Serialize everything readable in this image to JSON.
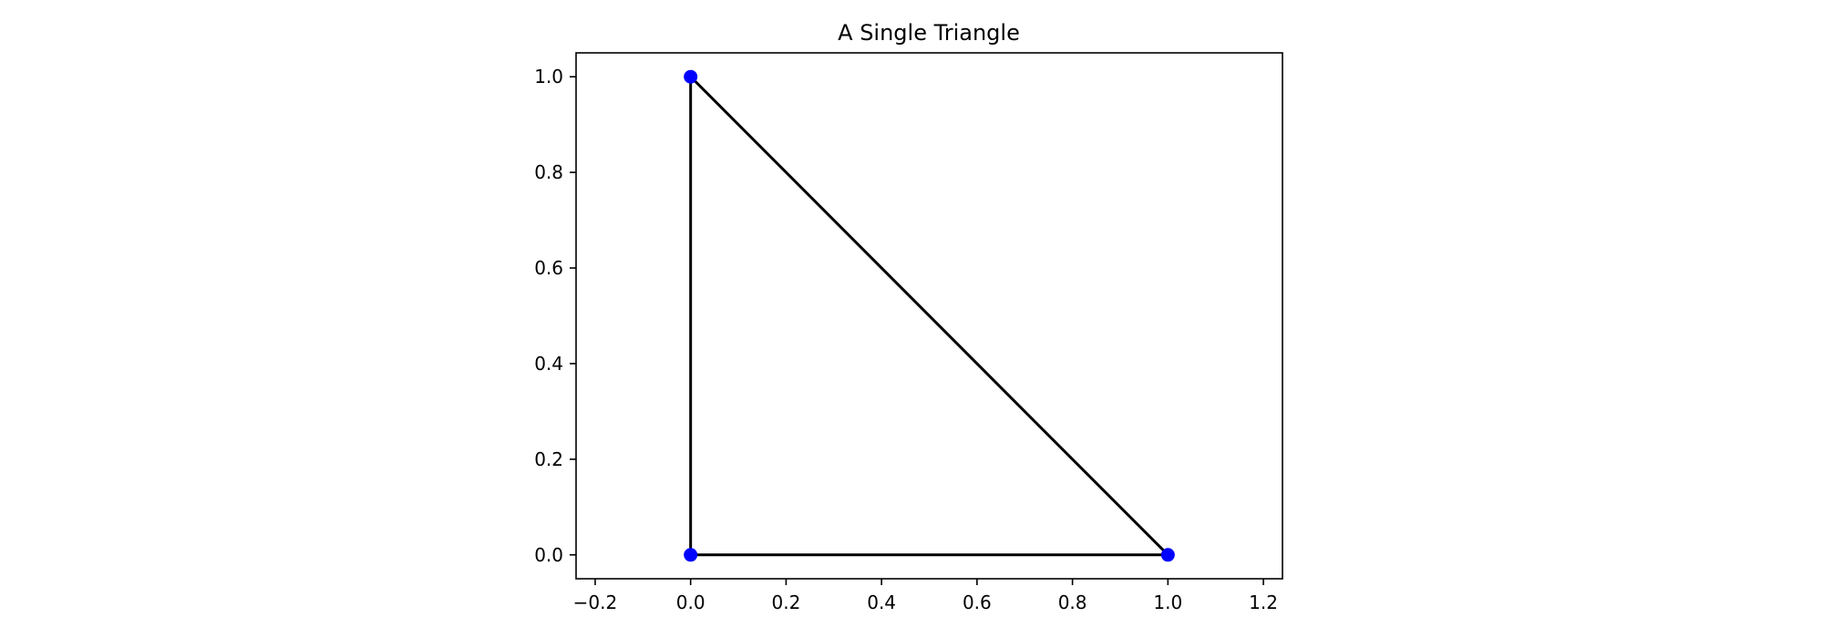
{
  "chart_data": {
    "type": "line",
    "title": "A Single Triangle",
    "xlabel": "",
    "ylabel": "",
    "xlim": [
      -0.24,
      1.24
    ],
    "ylim": [
      -0.05,
      1.05
    ],
    "x_ticks": [
      -0.2,
      0.0,
      0.2,
      0.4,
      0.6,
      0.8,
      1.0,
      1.2
    ],
    "x_tick_labels": [
      "−0.2",
      "0.0",
      "0.2",
      "0.4",
      "0.6",
      "0.8",
      "1.0",
      "1.2"
    ],
    "y_ticks": [
      0.0,
      0.2,
      0.4,
      0.6,
      0.8,
      1.0
    ],
    "y_tick_labels": [
      "0.0",
      "0.2",
      "0.4",
      "0.6",
      "0.8",
      "1.0"
    ],
    "grid": false,
    "series": [
      {
        "x": [
          0.0,
          1.0,
          0.0,
          0.0
        ],
        "y": [
          0.0,
          0.0,
          1.0,
          0.0
        ],
        "line_color": "#000000",
        "marker_color": "#0000ff",
        "marker": "circle",
        "marker_points": [
          [
            0.0,
            0.0
          ],
          [
            1.0,
            0.0
          ],
          [
            0.0,
            1.0
          ]
        ]
      }
    ]
  }
}
